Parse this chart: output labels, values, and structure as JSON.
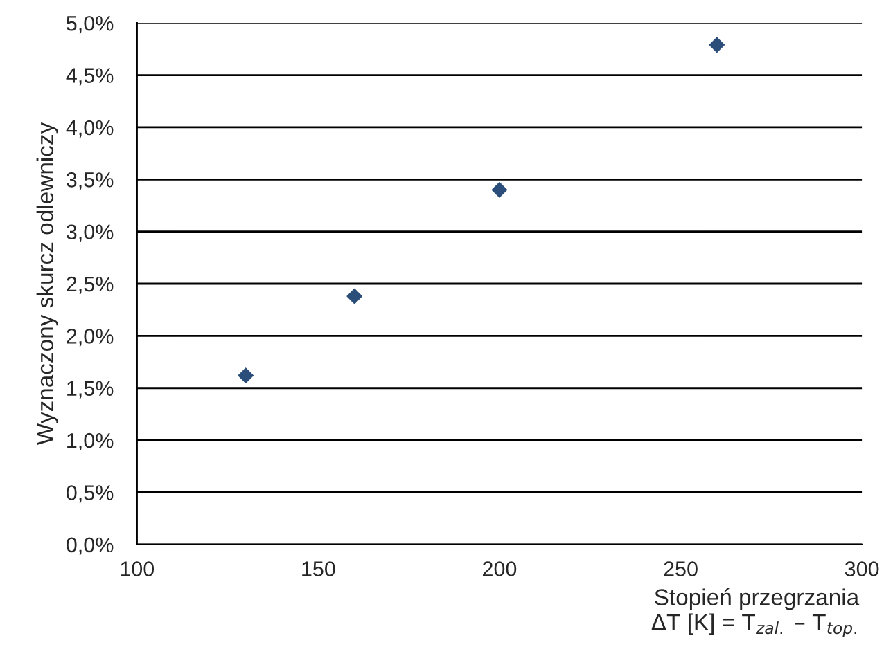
{
  "chart_data": {
    "type": "scatter",
    "xlabel": "Stopień przegrzania\nΔT [K] = T$_{zal.}$ – T$_{top.}$",
    "ylabel": "Wyznaczony skurcz odlewniczy",
    "x": [
      130,
      160,
      200,
      260
    ],
    "series": [
      {
        "color": "#2a4d7a",
        "values": [
          1.62,
          2.38,
          3.4,
          4.79
        ]
      }
    ],
    "marker": "diamond",
    "xlim": [
      100,
      300
    ],
    "xticks": [
      100,
      150,
      200,
      250,
      300
    ],
    "ylim": [
      0,
      5
    ],
    "yticks": [
      {
        "value": 0,
        "label": "0,0%"
      },
      {
        "value": 0.5,
        "label": "0,5%"
      },
      {
        "value": 1,
        "label": "1,0%"
      },
      {
        "value": 1.5,
        "label": "1,5%"
      },
      {
        "value": 2,
        "label": "2,0%"
      },
      {
        "value": 2.5,
        "label": "2,5%"
      },
      {
        "value": 3,
        "label": "3,0%"
      },
      {
        "value": 3.5,
        "label": "3,5%"
      },
      {
        "value": 4,
        "label": "4,0%"
      },
      {
        "value": 4.5,
        "label": "4,5%"
      },
      {
        "value": 5,
        "label": "5,0%"
      }
    ],
    "grid": "y"
  }
}
